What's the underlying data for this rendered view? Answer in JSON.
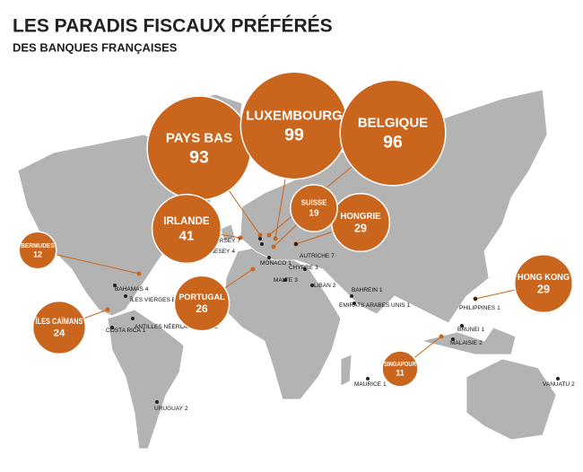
{
  "header": {
    "title": "LES PARADIS FISCAUX PRÉFÉRÉS",
    "subtitle": "DES BANQUES FRANÇAISES"
  },
  "bubbles": [
    {
      "name": "PAYS BAS",
      "value": 93
    },
    {
      "name": "LUXEMBOURG",
      "value": 99
    },
    {
      "name": "BELGIQUE",
      "value": 96
    },
    {
      "name": "IRLANDE",
      "value": 41
    },
    {
      "name": "HONGRIE",
      "value": 29
    },
    {
      "name": "SUISSE",
      "value": 19
    },
    {
      "name": "BERMUDES",
      "value": 12
    },
    {
      "name": "HONG KONG",
      "value": 29
    },
    {
      "name": "ÎLES CAÏMANS",
      "value": 24
    },
    {
      "name": "PORTUGAL",
      "value": 26
    },
    {
      "name": "SINGAPOUR",
      "value": 11
    }
  ],
  "points": [
    {
      "name": "JERSEY",
      "value": 7
    },
    {
      "name": "GUERNESEY",
      "value": 4
    },
    {
      "name": "MONACO",
      "value": 1
    },
    {
      "name": "AUTRICHE",
      "value": 7
    },
    {
      "name": "CHYPRE",
      "value": 3
    },
    {
      "name": "MALTE",
      "value": 3
    },
    {
      "name": "LIBAN",
      "value": 2
    },
    {
      "name": "BAHREIN",
      "value": 1
    },
    {
      "name": "EMIRATS ARABES UNIS",
      "value": 1
    },
    {
      "name": "PHILIPPINES",
      "value": 1
    },
    {
      "name": "BRUNEI",
      "value": 1
    },
    {
      "name": "MALAISIE",
      "value": 2
    },
    {
      "name": "VANUATU",
      "value": 2
    },
    {
      "name": "MAURICE",
      "value": 1
    },
    {
      "name": "URUGUAY",
      "value": 2
    },
    {
      "name": "BAHAMAS",
      "value": 4
    },
    {
      "name": "ÎLES VIERGES BRITANNIQUES",
      "value": 1
    },
    {
      "name": "ANTILLES NÉERLANDAISES",
      "value": 2
    },
    {
      "name": "COSTA RICA",
      "value": 1
    }
  ]
}
